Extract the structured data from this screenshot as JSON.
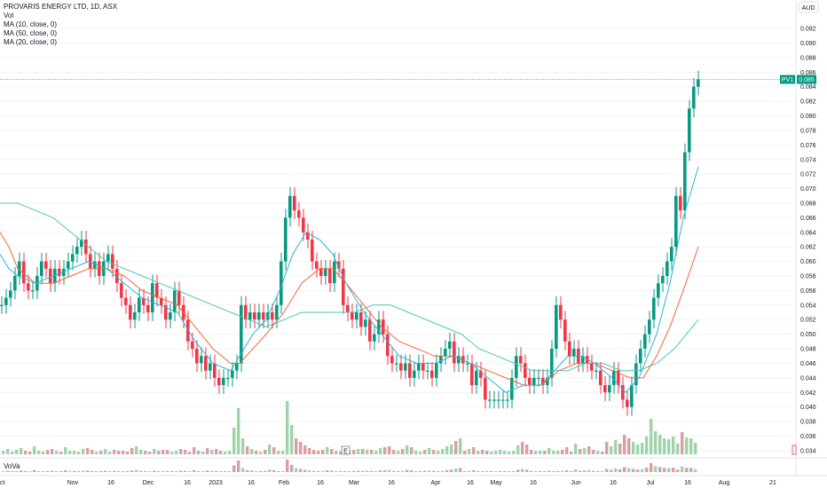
{
  "header": {
    "title": "PROVARIS ENERGY LTD, 1D, ASX",
    "indicators": [
      "Vol",
      "MA (10, close, 0)",
      "MA (50, close, 0)",
      "MA (20, close, 0)"
    ],
    "currency": "AUD",
    "price_tag_label": "PV1",
    "price_tag_value": "0.085",
    "sub_pane_label": "VoVa"
  },
  "colors": {
    "up": "#26a69a",
    "up_body": "#089981",
    "down": "#f23645",
    "vol_up": "#9fd3a8",
    "vol_down": "#d8a0a3",
    "ma10": "#2bb3d9",
    "ma20": "#f2663a",
    "ma50": "#4cc9b0",
    "price_line": "#4da89c",
    "grid": "#f0f3fa"
  },
  "chart_data": {
    "type": "candlestick",
    "title": "PROVARIS ENERGY LTD, 1D, ASX",
    "y_ticks": [
      "0.092",
      "0.090",
      "0.088",
      "0.086",
      "0.084",
      "0.082",
      "0.080",
      "0.078",
      "0.076",
      "0.074",
      "0.072",
      "0.070",
      "0.068",
      "0.066",
      "0.064",
      "0.062",
      "0.060",
      "0.058",
      "0.056",
      "0.054",
      "0.052",
      "0.050",
      "0.048",
      "0.046",
      "0.044",
      "0.042",
      "0.040",
      "0.038",
      "0.036",
      "0.034"
    ],
    "x_ticks": [
      "ct",
      "Nov",
      "16",
      "Dec",
      "16",
      "2023",
      "16",
      "Feb",
      "16",
      "Mar",
      "16",
      "Apr",
      "16",
      "May",
      "16",
      "Jun",
      "16",
      "Jul",
      "16",
      "Aug",
      "21"
    ],
    "y_range": [
      0.0335,
      0.0925
    ],
    "last_price": 0.085,
    "series_name": "PV1",
    "close_points": [
      [
        0,
        0.054
      ],
      [
        5,
        0.055
      ],
      [
        10,
        0.056
      ],
      [
        15,
        0.058
      ],
      [
        20,
        0.06
      ],
      [
        25,
        0.057
      ],
      [
        30,
        0.056
      ],
      [
        35,
        0.056
      ],
      [
        40,
        0.058
      ],
      [
        45,
        0.06
      ],
      [
        50,
        0.059
      ],
      [
        55,
        0.057
      ],
      [
        60,
        0.059
      ],
      [
        65,
        0.058
      ],
      [
        70,
        0.059
      ],
      [
        75,
        0.06
      ],
      [
        80,
        0.061
      ],
      [
        85,
        0.062
      ],
      [
        90,
        0.063
      ],
      [
        95,
        0.061
      ],
      [
        100,
        0.059
      ],
      [
        105,
        0.06
      ],
      [
        110,
        0.058
      ],
      [
        115,
        0.06
      ],
      [
        120,
        0.061
      ],
      [
        125,
        0.059
      ],
      [
        130,
        0.057
      ],
      [
        135,
        0.055
      ],
      [
        140,
        0.054
      ],
      [
        145,
        0.052
      ],
      [
        150,
        0.053
      ],
      [
        155,
        0.055
      ],
      [
        160,
        0.054
      ],
      [
        165,
        0.053
      ],
      [
        170,
        0.057
      ],
      [
        175,
        0.055
      ],
      [
        180,
        0.054
      ],
      [
        185,
        0.052
      ],
      [
        190,
        0.053
      ],
      [
        195,
        0.056
      ],
      [
        200,
        0.054
      ],
      [
        205,
        0.052
      ],
      [
        210,
        0.049
      ],
      [
        215,
        0.048
      ],
      [
        220,
        0.046
      ],
      [
        225,
        0.047
      ],
      [
        230,
        0.045
      ],
      [
        235,
        0.046
      ],
      [
        240,
        0.044
      ],
      [
        245,
        0.043
      ],
      [
        250,
        0.044
      ],
      [
        255,
        0.044
      ],
      [
        260,
        0.045
      ],
      [
        265,
        0.046
      ],
      [
        270,
        0.054
      ],
      [
        275,
        0.052
      ],
      [
        280,
        0.053
      ],
      [
        285,
        0.052
      ],
      [
        290,
        0.053
      ],
      [
        295,
        0.052
      ],
      [
        300,
        0.053
      ],
      [
        305,
        0.052
      ],
      [
        310,
        0.054
      ],
      [
        315,
        0.06
      ],
      [
        320,
        0.066
      ],
      [
        325,
        0.069
      ],
      [
        330,
        0.067
      ],
      [
        335,
        0.066
      ],
      [
        340,
        0.064
      ],
      [
        345,
        0.063
      ],
      [
        350,
        0.06
      ],
      [
        355,
        0.059
      ],
      [
        360,
        0.058
      ],
      [
        365,
        0.059
      ],
      [
        370,
        0.057
      ],
      [
        375,
        0.06
      ],
      [
        380,
        0.059
      ],
      [
        385,
        0.054
      ],
      [
        390,
        0.053
      ],
      [
        395,
        0.052
      ],
      [
        400,
        0.053
      ],
      [
        405,
        0.051
      ],
      [
        410,
        0.052
      ],
      [
        415,
        0.049
      ],
      [
        420,
        0.05
      ],
      [
        425,
        0.052
      ],
      [
        430,
        0.05
      ],
      [
        435,
        0.047
      ],
      [
        440,
        0.046
      ],
      [
        445,
        0.046
      ],
      [
        450,
        0.045
      ],
      [
        455,
        0.046
      ],
      [
        460,
        0.044
      ],
      [
        465,
        0.045
      ],
      [
        470,
        0.046
      ],
      [
        475,
        0.045
      ],
      [
        480,
        0.045
      ],
      [
        485,
        0.044
      ],
      [
        490,
        0.046
      ],
      [
        495,
        0.047
      ],
      [
        500,
        0.048
      ],
      [
        505,
        0.049
      ],
      [
        510,
        0.046
      ],
      [
        515,
        0.047
      ],
      [
        520,
        0.046
      ],
      [
        525,
        0.046
      ],
      [
        530,
        0.043
      ],
      [
        535,
        0.045
      ],
      [
        540,
        0.044
      ],
      [
        545,
        0.041
      ],
      [
        550,
        0.041
      ],
      [
        555,
        0.041
      ],
      [
        560,
        0.041
      ],
      [
        565,
        0.041
      ],
      [
        570,
        0.041
      ],
      [
        575,
        0.044
      ],
      [
        580,
        0.047
      ],
      [
        585,
        0.046
      ],
      [
        590,
        0.044
      ],
      [
        595,
        0.043
      ],
      [
        600,
        0.044
      ],
      [
        605,
        0.044
      ],
      [
        610,
        0.043
      ],
      [
        615,
        0.044
      ],
      [
        620,
        0.048
      ],
      [
        625,
        0.054
      ],
      [
        630,
        0.052
      ],
      [
        635,
        0.049
      ],
      [
        640,
        0.047
      ],
      [
        645,
        0.048
      ],
      [
        650,
        0.046
      ],
      [
        655,
        0.047
      ],
      [
        660,
        0.046
      ],
      [
        665,
        0.045
      ],
      [
        670,
        0.045
      ],
      [
        675,
        0.043
      ],
      [
        680,
        0.042
      ],
      [
        685,
        0.043
      ],
      [
        690,
        0.045
      ],
      [
        695,
        0.043
      ],
      [
        700,
        0.041
      ],
      [
        705,
        0.04
      ],
      [
        710,
        0.043
      ],
      [
        715,
        0.046
      ],
      [
        720,
        0.048
      ],
      [
        725,
        0.05
      ],
      [
        730,
        0.052
      ],
      [
        735,
        0.055
      ],
      [
        740,
        0.057
      ],
      [
        745,
        0.058
      ],
      [
        750,
        0.06
      ],
      [
        755,
        0.062
      ],
      [
        760,
        0.069
      ],
      [
        765,
        0.067
      ],
      [
        770,
        0.075
      ],
      [
        775,
        0.081
      ],
      [
        780,
        0.084
      ],
      [
        785,
        0.085
      ]
    ],
    "ma10_points": [
      [
        0,
        0.061
      ],
      [
        10,
        0.059
      ],
      [
        20,
        0.058
      ],
      [
        40,
        0.057
      ],
      [
        60,
        0.058
      ],
      [
        80,
        0.059
      ],
      [
        100,
        0.06
      ],
      [
        120,
        0.059
      ],
      [
        140,
        0.057
      ],
      [
        160,
        0.055
      ],
      [
        180,
        0.054
      ],
      [
        200,
        0.053
      ],
      [
        220,
        0.049
      ],
      [
        240,
        0.046
      ],
      [
        260,
        0.045
      ],
      [
        270,
        0.047
      ],
      [
        285,
        0.05
      ],
      [
        300,
        0.052
      ],
      [
        315,
        0.056
      ],
      [
        330,
        0.061
      ],
      [
        345,
        0.064
      ],
      [
        360,
        0.063
      ],
      [
        375,
        0.061
      ],
      [
        390,
        0.057
      ],
      [
        410,
        0.053
      ],
      [
        430,
        0.05
      ],
      [
        450,
        0.047
      ],
      [
        470,
        0.046
      ],
      [
        490,
        0.046
      ],
      [
        510,
        0.047
      ],
      [
        530,
        0.046
      ],
      [
        550,
        0.044
      ],
      [
        570,
        0.042
      ],
      [
        590,
        0.043
      ],
      [
        610,
        0.043
      ],
      [
        625,
        0.045
      ],
      [
        640,
        0.047
      ],
      [
        655,
        0.047
      ],
      [
        670,
        0.046
      ],
      [
        690,
        0.044
      ],
      [
        705,
        0.042
      ],
      [
        720,
        0.044
      ],
      [
        740,
        0.05
      ],
      [
        755,
        0.057
      ],
      [
        770,
        0.066
      ],
      [
        787,
        0.073
      ]
    ],
    "ma20_points": [
      [
        0,
        0.064
      ],
      [
        10,
        0.062
      ],
      [
        20,
        0.059
      ],
      [
        40,
        0.057
      ],
      [
        60,
        0.057
      ],
      [
        80,
        0.058
      ],
      [
        100,
        0.059
      ],
      [
        120,
        0.059
      ],
      [
        140,
        0.058
      ],
      [
        160,
        0.056
      ],
      [
        180,
        0.055
      ],
      [
        200,
        0.054
      ],
      [
        220,
        0.051
      ],
      [
        240,
        0.048
      ],
      [
        260,
        0.046
      ],
      [
        270,
        0.046
      ],
      [
        285,
        0.048
      ],
      [
        300,
        0.05
      ],
      [
        320,
        0.053
      ],
      [
        340,
        0.057
      ],
      [
        360,
        0.059
      ],
      [
        375,
        0.059
      ],
      [
        390,
        0.057
      ],
      [
        410,
        0.054
      ],
      [
        430,
        0.051
      ],
      [
        450,
        0.049
      ],
      [
        470,
        0.048
      ],
      [
        490,
        0.047
      ],
      [
        510,
        0.047
      ],
      [
        530,
        0.046
      ],
      [
        550,
        0.045
      ],
      [
        570,
        0.044
      ],
      [
        590,
        0.043
      ],
      [
        610,
        0.043
      ],
      [
        630,
        0.045
      ],
      [
        650,
        0.046
      ],
      [
        670,
        0.046
      ],
      [
        690,
        0.045
      ],
      [
        710,
        0.044
      ],
      [
        725,
        0.044
      ],
      [
        740,
        0.047
      ],
      [
        755,
        0.051
      ],
      [
        770,
        0.056
      ],
      [
        787,
        0.062
      ]
    ],
    "ma50_points": [
      [
        0,
        0.068
      ],
      [
        20,
        0.068
      ],
      [
        40,
        0.067
      ],
      [
        60,
        0.066
      ],
      [
        80,
        0.064
      ],
      [
        100,
        0.062
      ],
      [
        120,
        0.06
      ],
      [
        140,
        0.059
      ],
      [
        160,
        0.058
      ],
      [
        180,
        0.057
      ],
      [
        200,
        0.056
      ],
      [
        220,
        0.055
      ],
      [
        240,
        0.054
      ],
      [
        260,
        0.053
      ],
      [
        280,
        0.052
      ],
      [
        300,
        0.051
      ],
      [
        320,
        0.052
      ],
      [
        340,
        0.053
      ],
      [
        360,
        0.053
      ],
      [
        380,
        0.053
      ],
      [
        400,
        0.053
      ],
      [
        420,
        0.054
      ],
      [
        440,
        0.054
      ],
      [
        460,
        0.053
      ],
      [
        480,
        0.052
      ],
      [
        500,
        0.051
      ],
      [
        520,
        0.05
      ],
      [
        540,
        0.048
      ],
      [
        560,
        0.047
      ],
      [
        580,
        0.046
      ],
      [
        600,
        0.045
      ],
      [
        620,
        0.045
      ],
      [
        640,
        0.045
      ],
      [
        660,
        0.046
      ],
      [
        680,
        0.046
      ],
      [
        700,
        0.045
      ],
      [
        720,
        0.045
      ],
      [
        740,
        0.046
      ],
      [
        760,
        0.048
      ],
      [
        787,
        0.052
      ]
    ],
    "volume_heights": [
      4,
      6,
      3,
      5,
      7,
      4,
      3,
      9,
      4,
      3,
      5,
      6,
      4,
      3,
      8,
      4,
      4,
      3,
      6,
      7,
      5,
      3,
      4,
      6,
      3,
      5,
      4,
      4,
      3,
      7,
      9,
      5,
      4,
      3,
      6,
      4,
      5,
      5,
      3,
      4,
      6,
      5,
      3,
      8,
      4,
      3,
      7,
      5,
      6,
      4,
      3,
      4,
      30,
      52,
      18,
      9,
      6,
      4,
      3,
      5,
      11,
      8,
      4,
      4,
      60,
      33,
      18,
      14,
      10,
      7,
      5,
      4,
      5,
      8,
      6,
      4,
      3,
      3,
      4,
      5,
      6,
      6,
      5,
      5,
      4,
      7,
      8,
      9,
      5,
      4,
      6,
      10,
      8,
      4,
      3,
      5,
      7,
      5,
      4,
      6,
      9,
      11,
      15,
      18,
      4,
      6,
      8,
      4,
      5,
      4,
      3,
      4,
      5,
      4,
      3,
      4,
      10,
      14,
      11,
      5,
      4,
      4,
      4,
      7,
      4,
      4,
      5,
      8,
      3,
      12,
      6,
      7,
      9,
      5,
      4,
      3,
      14,
      9,
      16,
      12,
      22,
      18,
      14,
      11,
      13,
      20,
      40,
      26,
      22,
      18,
      17,
      20,
      12,
      25,
      19,
      18,
      13
    ]
  }
}
